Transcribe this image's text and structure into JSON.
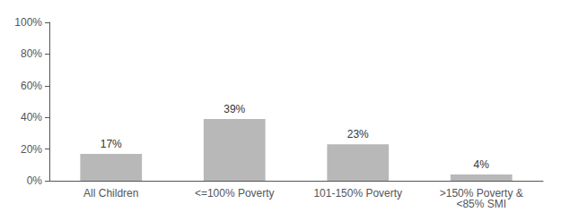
{
  "chart_data": {
    "type": "bar",
    "categories": [
      "All Children",
      "<=100% Poverty",
      "101-150% Poverty",
      ">150% Poverty &\n<85% SMI"
    ],
    "values": [
      17,
      39,
      23,
      4
    ],
    "value_labels": [
      "17%",
      "39%",
      "23%",
      "4%"
    ],
    "data_labels": true,
    "color": "#b8b8b8",
    "ylim": [
      0,
      100
    ],
    "yticks": [
      {
        "value": 0,
        "label": "0%"
      },
      {
        "value": 20,
        "label": "20%"
      },
      {
        "value": 40,
        "label": "40%"
      },
      {
        "value": 60,
        "label": "60%"
      },
      {
        "value": 80,
        "label": "80%"
      },
      {
        "value": 100,
        "label": "100%"
      }
    ],
    "grid": false
  }
}
